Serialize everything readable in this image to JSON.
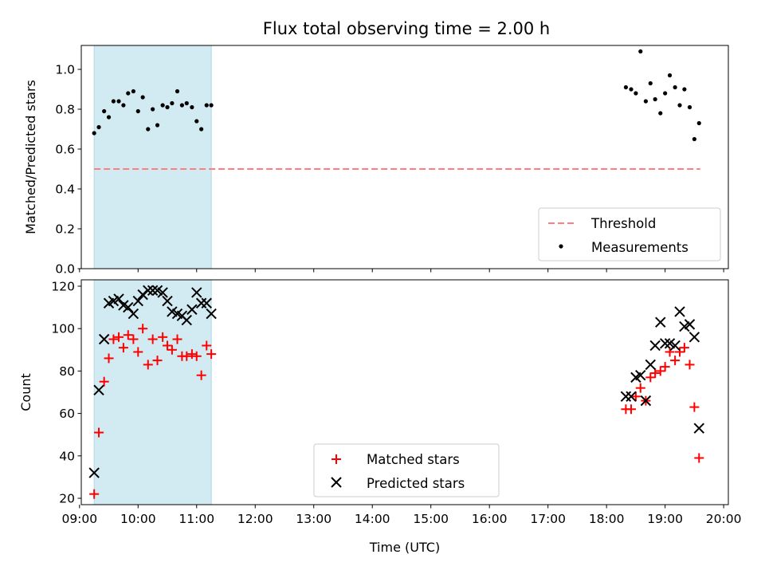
{
  "figure": {
    "title": "Flux total observing time = 2.00 h",
    "xlabel": "Time (UTC)",
    "colors": {
      "threshold": "#ff7f7f",
      "measurement": "#000000",
      "shade": "#add8e6",
      "matched": "#ff0000",
      "predicted": "#000000"
    }
  },
  "chart_data": [
    {
      "type": "scatter",
      "panel": "top",
      "ylabel": "Matched/Predicted stars",
      "xlim": [
        9.03,
        20.08
      ],
      "ylim": [
        0.0,
        1.12
      ],
      "xticks": [
        9,
        10,
        11,
        12,
        13,
        14,
        15,
        16,
        17,
        18,
        19,
        20
      ],
      "xticklabels": [],
      "yticks": [
        0.0,
        0.2,
        0.4,
        0.6,
        0.8,
        1.0
      ],
      "yticklabels": [
        "0.0",
        "0.2",
        "0.4",
        "0.6",
        "0.8",
        "1.0"
      ],
      "shaded_region": [
        9.25,
        11.25
      ],
      "threshold": {
        "name": "Threshold",
        "y": 0.5,
        "x": [
          9.25,
          19.6
        ],
        "style": "dashed"
      },
      "series": [
        {
          "name": "Measurements",
          "marker": "dot",
          "x": [
            9.25,
            9.33,
            9.42,
            9.5,
            9.58,
            9.67,
            9.75,
            9.83,
            9.92,
            10.0,
            10.08,
            10.17,
            10.25,
            10.33,
            10.42,
            10.5,
            10.58,
            10.67,
            10.75,
            10.83,
            10.92,
            11.0,
            11.08,
            11.17,
            11.25,
            18.33,
            18.42,
            18.5,
            18.58,
            18.67,
            18.75,
            18.83,
            18.92,
            19.0,
            19.08,
            19.17,
            19.25,
            19.33,
            19.42,
            19.5,
            19.58
          ],
          "y": [
            0.68,
            0.71,
            0.79,
            0.76,
            0.84,
            0.84,
            0.82,
            0.88,
            0.89,
            0.79,
            0.86,
            0.7,
            0.8,
            0.72,
            0.82,
            0.81,
            0.83,
            0.89,
            0.82,
            0.83,
            0.81,
            0.74,
            0.7,
            0.82,
            0.82,
            0.91,
            0.9,
            0.88,
            1.09,
            0.84,
            0.93,
            0.85,
            0.78,
            0.88,
            0.97,
            0.91,
            0.82,
            0.9,
            0.81,
            0.65,
            0.73
          ]
        }
      ],
      "legend": {
        "position": "lower-right",
        "entries": [
          "Threshold",
          "Measurements"
        ]
      }
    },
    {
      "type": "scatter",
      "panel": "bottom",
      "ylabel": "Count",
      "xlim": [
        9.03,
        20.08
      ],
      "ylim": [
        17,
        123
      ],
      "xticks": [
        9,
        10,
        11,
        12,
        13,
        14,
        15,
        16,
        17,
        18,
        19,
        20
      ],
      "xticklabels": [
        "09:00",
        "10:00",
        "11:00",
        "12:00",
        "13:00",
        "14:00",
        "15:00",
        "16:00",
        "17:00",
        "18:00",
        "19:00",
        "20:00"
      ],
      "yticks": [
        20,
        40,
        60,
        80,
        100,
        120
      ],
      "yticklabels": [
        "20",
        "40",
        "60",
        "80",
        "100",
        "120"
      ],
      "shaded_region": [
        9.25,
        11.25
      ],
      "series": [
        {
          "name": "Matched stars",
          "marker": "plus",
          "x": [
            9.25,
            9.33,
            9.42,
            9.5,
            9.58,
            9.67,
            9.75,
            9.83,
            9.92,
            10.0,
            10.08,
            10.17,
            10.25,
            10.33,
            10.42,
            10.5,
            10.58,
            10.67,
            10.75,
            10.83,
            10.92,
            11.0,
            11.08,
            11.17,
            11.25,
            18.33,
            18.42,
            18.5,
            18.58,
            18.67,
            18.75,
            18.83,
            18.92,
            19.0,
            19.08,
            19.17,
            19.25,
            19.33,
            19.42,
            19.5,
            19.58
          ],
          "y": [
            22,
            51,
            75,
            86,
            95,
            96,
            91,
            97,
            95,
            89,
            100,
            83,
            95,
            85,
            96,
            92,
            90,
            95,
            87,
            87,
            88,
            87,
            78,
            92,
            88,
            62,
            62,
            68,
            72,
            66,
            77,
            79,
            80,
            82,
            89,
            85,
            89,
            91,
            83,
            63,
            39
          ]
        },
        {
          "name": "Predicted stars",
          "marker": "x",
          "x": [
            9.25,
            9.33,
            9.42,
            9.5,
            9.58,
            9.67,
            9.75,
            9.83,
            9.92,
            10.0,
            10.08,
            10.17,
            10.25,
            10.33,
            10.42,
            10.5,
            10.58,
            10.67,
            10.75,
            10.83,
            10.92,
            11.0,
            11.08,
            11.17,
            11.25,
            18.33,
            18.42,
            18.5,
            18.58,
            18.67,
            18.75,
            18.83,
            18.92,
            19.0,
            19.08,
            19.17,
            19.25,
            19.33,
            19.42,
            19.5,
            19.58
          ],
          "y": [
            32,
            71,
            95,
            112,
            113,
            114,
            111,
            110,
            107,
            113,
            116,
            118,
            118,
            118,
            117,
            113,
            108,
            107,
            106,
            104,
            109,
            117,
            112,
            112,
            107,
            68,
            68,
            77,
            78,
            66,
            83,
            92,
            103,
            93,
            93,
            92,
            108,
            101,
            102,
            96,
            53
          ]
        }
      ],
      "legend": {
        "position": "lower-center",
        "entries": [
          "Matched stars",
          "Predicted stars"
        ]
      }
    }
  ]
}
